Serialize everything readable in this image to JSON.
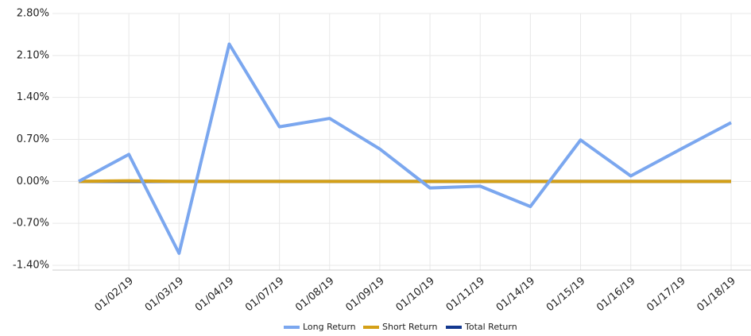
{
  "chart_data": {
    "type": "line",
    "categories": [
      null,
      "01/02/19",
      "01/03/19",
      "01/04/19",
      "01/07/19",
      "01/08/19",
      "01/09/19",
      "01/10/19",
      "01/11/19",
      "01/14/19",
      "01/15/19",
      "01/16/19",
      "01/17/19",
      "01/18/19"
    ],
    "series": [
      {
        "name": "Long Return",
        "color": "#7ba7ef",
        "values": [
          0,
          0.45,
          -1.2,
          2.29,
          0.91,
          1.05,
          0.54,
          -0.11,
          -0.08,
          -0.42,
          0.69,
          0.09,
          0.54,
          0.98
        ]
      },
      {
        "name": "Short Return",
        "color": "#d4a017",
        "values": [
          0,
          0.01,
          0,
          0,
          0,
          0,
          0,
          0,
          0,
          0,
          0,
          0,
          0,
          0
        ]
      },
      {
        "name": "Total Return",
        "color": "#13388f",
        "values": [
          0,
          0,
          0,
          0,
          0,
          0,
          0,
          0,
          0,
          0,
          0,
          0,
          0,
          0
        ]
      }
    ],
    "ylim": [
      -1.4,
      2.8
    ],
    "yticks": [
      {
        "value": -1.4,
        "label": "-1.40%"
      },
      {
        "value": -0.7,
        "label": "-0.70%"
      },
      {
        "value": 0,
        "label": "0.00%"
      },
      {
        "value": 0.7,
        "label": "0.70%"
      },
      {
        "value": 1.4,
        "label": "1.40%"
      },
      {
        "value": 2.1,
        "label": "2.10%"
      },
      {
        "value": 2.8,
        "label": "2.80%"
      }
    ],
    "grid": true
  }
}
